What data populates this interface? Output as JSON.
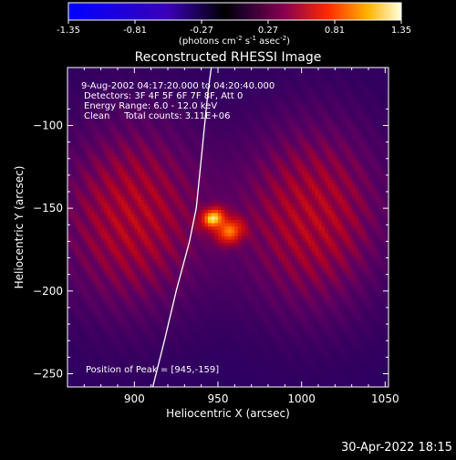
{
  "chart_data": {
    "type": "heatmap",
    "title": "Reconstructed RHESSI Image",
    "xlabel": "Heliocentric X (arcsec)",
    "ylabel": "Heliocentric Y (arcsec)",
    "xlim": [
      860,
      1052
    ],
    "ylim": [
      -258,
      -65
    ],
    "xticks": [
      900,
      950,
      1000,
      1050
    ],
    "yticks": [
      -100,
      -150,
      -200,
      -250
    ],
    "colorbar": {
      "min": -1.35,
      "max": 1.35,
      "ticks": [
        "-1.35",
        "-0.81",
        "-0.27",
        "0.27",
        "0.81",
        "1.35"
      ],
      "label_prefix": "(photons cm",
      "label_sup1": "-2",
      "label_mid1": " s",
      "label_sup2": "-1",
      "label_mid2": " asec",
      "label_sup3": "-2",
      "label_suffix": ")"
    },
    "annotations": [
      "9-Aug-2002 04:17:20.000 to 04:20:40.000",
      "Detectors: 3F 4F 5F 6F 7F 8F, Att 0",
      "Energy Range: 6.0 - 12.0 keV",
      "Clean     Total counts: 3.11E+06"
    ],
    "peak_label": "Position of Peak = [945,-159]",
    "peak": [
      945,
      -159
    ],
    "footer": "30-Apr-2022 18:15",
    "limb_curve": [
      [
        911,
        -258
      ],
      [
        918,
        -230
      ],
      [
        925,
        -200
      ],
      [
        933,
        -170
      ],
      [
        937,
        -150
      ],
      [
        940,
        -120
      ],
      [
        942,
        -100
      ],
      [
        944,
        -80
      ],
      [
        946,
        -65
      ]
    ],
    "sources": [
      {
        "x": 947,
        "y": -156,
        "sx": 5,
        "sy": 4,
        "amp": 0.75,
        "rot": 0.5
      },
      {
        "x": 957,
        "y": -164,
        "sx": 6,
        "sy": 5,
        "amp": 0.6,
        "rot": 0.5
      }
    ],
    "lobes": [
      {
        "x": 898,
        "y": -155,
        "sx": 32,
        "sy": 42,
        "amp": 0.45
      },
      {
        "x": 1007,
        "y": -155,
        "sx": 32,
        "sy": 42,
        "amp": 0.45
      }
    ]
  }
}
